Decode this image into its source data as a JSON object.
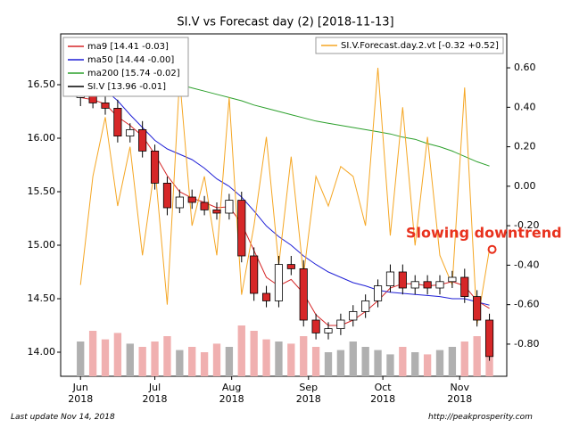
{
  "chart_data": {
    "type": "candlestick",
    "title": "SI.V vs Forecast day (2)  [2018-11-13]",
    "x": [
      0,
      5,
      10,
      15,
      20,
      25,
      30,
      35,
      40,
      45,
      50,
      55,
      60,
      65,
      70,
      75,
      80,
      85,
      90,
      95,
      100,
      105,
      110,
      115,
      120,
      125,
      130,
      135,
      140,
      145,
      150,
      155,
      160,
      165
    ],
    "xlim": [
      -8,
      172
    ],
    "xticks": [
      {
        "value": 0,
        "label": "Jun\n2018"
      },
      {
        "value": 30,
        "label": "Jul\n2018"
      },
      {
        "value": 61,
        "label": "Aug\n2018"
      },
      {
        "value": 92,
        "label": "Sep\n2018"
      },
      {
        "value": 122,
        "label": "Oct\n2018"
      },
      {
        "value": 153,
        "label": "Nov\n2018"
      }
    ],
    "ylim": [
      13.775,
      16.975
    ],
    "yticks": [
      {
        "value": 14,
        "label": "14.00"
      },
      {
        "value": 14.5,
        "label": "14.50"
      },
      {
        "value": 15,
        "label": "15.00"
      },
      {
        "value": 15.5,
        "label": "15.50"
      },
      {
        "value": 16,
        "label": "16.00"
      },
      {
        "value": 16.5,
        "label": "16.50"
      }
    ],
    "y2lim": [
      -0.963,
      0.772
    ],
    "y2ticks": [
      {
        "value": -0.8,
        "label": "-0.80"
      },
      {
        "value": -0.6,
        "label": "-0.60"
      },
      {
        "value": -0.4,
        "label": "-0.40"
      },
      {
        "value": -0.2,
        "label": "-0.20"
      },
      {
        "value": 0,
        "label": "0.00"
      },
      {
        "value": 0.2,
        "label": "0.20"
      },
      {
        "value": 0.4,
        "label": "0.40"
      },
      {
        "value": 0.6,
        "label": "0.60"
      }
    ],
    "ohlc": {
      "name": "SI.V [13.96 -0.01]",
      "color": "#000000",
      "down_color": "#d62728",
      "open": [
        16.38,
        16.4,
        16.33,
        16.28,
        16.02,
        16.08,
        15.88,
        15.58,
        15.35,
        15.45,
        15.4,
        15.33,
        15.3,
        15.42,
        14.9,
        14.55,
        14.48,
        14.82,
        14.78,
        14.3,
        14.18,
        14.22,
        14.3,
        14.38,
        14.48,
        14.62,
        14.75,
        14.6,
        14.66,
        14.6,
        14.66,
        14.7,
        14.52,
        14.3
      ],
      "high": [
        16.48,
        16.46,
        16.4,
        16.36,
        16.14,
        16.16,
        15.94,
        15.64,
        15.52,
        15.52,
        15.46,
        15.4,
        15.48,
        15.5,
        14.98,
        14.62,
        14.9,
        14.9,
        14.86,
        14.36,
        14.28,
        14.36,
        14.44,
        14.54,
        14.68,
        14.82,
        14.82,
        14.72,
        14.72,
        14.72,
        14.76,
        14.78,
        14.58,
        14.36
      ],
      "low": [
        16.3,
        16.28,
        16.22,
        15.96,
        15.96,
        15.82,
        15.52,
        15.28,
        15.3,
        15.34,
        15.28,
        15.24,
        15.24,
        14.84,
        14.48,
        14.42,
        14.42,
        14.72,
        14.24,
        14.12,
        14.12,
        14.16,
        14.24,
        14.32,
        14.42,
        14.56,
        14.54,
        14.54,
        14.54,
        14.54,
        14.6,
        14.46,
        14.24,
        13.92
      ],
      "close": [
        16.4,
        16.33,
        16.28,
        16.02,
        16.08,
        15.88,
        15.58,
        15.35,
        15.45,
        15.4,
        15.33,
        15.3,
        15.42,
        14.9,
        14.55,
        14.48,
        14.82,
        14.78,
        14.3,
        14.18,
        14.22,
        14.3,
        14.38,
        14.48,
        14.62,
        14.75,
        14.6,
        14.66,
        14.6,
        14.66,
        14.7,
        14.52,
        14.3,
        13.96
      ]
    },
    "volume": {
      "up_color": "#b0b0b0",
      "down_color": "#f0b0b0",
      "values": [
        14.1,
        14.2,
        14.12,
        14.18,
        14.08,
        14.05,
        14.1,
        14.15,
        14.02,
        14.05,
        14.0,
        14.08,
        14.05,
        14.25,
        14.2,
        14.12,
        14.1,
        14.08,
        14.15,
        14.05,
        14.0,
        14.02,
        14.1,
        14.05,
        14.02,
        13.98,
        14.05,
        14.0,
        13.98,
        14.02,
        14.05,
        14.1,
        14.15,
        14.12
      ]
    },
    "series": [
      {
        "name": "ma9 [14.41 -0.03]",
        "color": "#d62728",
        "values": [
          16.38,
          16.36,
          16.32,
          16.2,
          16.12,
          16.02,
          15.85,
          15.65,
          15.5,
          15.44,
          15.4,
          15.35,
          15.36,
          15.2,
          14.95,
          14.7,
          14.62,
          14.68,
          14.55,
          14.35,
          14.25,
          14.25,
          14.3,
          14.38,
          14.48,
          14.6,
          14.64,
          14.64,
          14.62,
          14.63,
          14.66,
          14.62,
          14.48,
          14.41
        ]
      },
      {
        "name": "ma50 [14.44 -0.00]",
        "color": "#1f1fd6",
        "values": [
          16.62,
          16.55,
          16.45,
          16.35,
          16.22,
          16.1,
          15.98,
          15.9,
          15.85,
          15.8,
          15.72,
          15.62,
          15.55,
          15.45,
          15.32,
          15.18,
          15.08,
          15.0,
          14.9,
          14.82,
          14.75,
          14.7,
          14.65,
          14.62,
          14.58,
          14.56,
          14.55,
          14.54,
          14.53,
          14.52,
          14.5,
          14.5,
          14.47,
          14.44
        ]
      },
      {
        "name": "ma200 [15.74 -0.02]",
        "color": "#2ca02c",
        "values": [
          null,
          null,
          null,
          null,
          null,
          16.6,
          16.56,
          16.53,
          16.5,
          16.47,
          16.44,
          16.41,
          16.38,
          16.35,
          16.31,
          16.28,
          16.25,
          16.22,
          16.19,
          16.16,
          16.14,
          16.12,
          16.1,
          16.08,
          16.06,
          16.04,
          16.01,
          15.99,
          15.95,
          15.92,
          15.88,
          15.83,
          15.78,
          15.74
        ]
      },
      {
        "name": "SI.V.Forecast.day.2.vt [-0.32 +0.52]",
        "color": "#f5a623",
        "axis": "y2",
        "values": [
          -0.5,
          0.05,
          0.35,
          -0.1,
          0.2,
          -0.35,
          0.1,
          -0.6,
          0.55,
          -0.2,
          0.05,
          -0.35,
          0.45,
          -0.55,
          -0.2,
          0.25,
          -0.4,
          0.15,
          -0.45,
          0.05,
          -0.1,
          0.1,
          0.05,
          -0.2,
          0.6,
          -0.25,
          0.4,
          -0.3,
          0.25,
          -0.35,
          -0.5,
          0.5,
          -0.7,
          -0.32
        ]
      }
    ],
    "annotation": "Slowing downtrend",
    "annotation_color": "#e8321e",
    "footer_left": "Last update Nov 14, 2018",
    "footer_right": "http://peakprosperity.com"
  }
}
